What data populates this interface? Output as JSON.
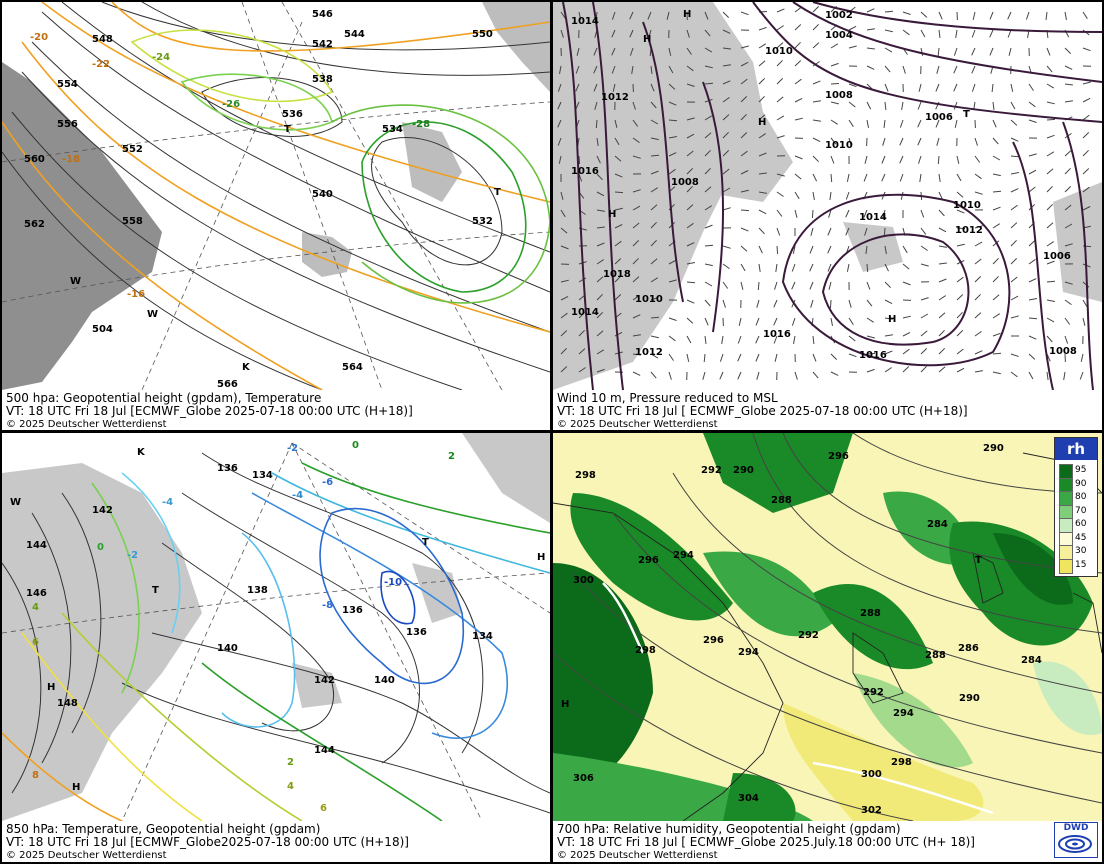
{
  "panels": {
    "tl": {
      "line1": "500 hpa: Geopotential height (gpdam), Temperature",
      "line2": "VT: 18 UTC Fri  18 Jul [ECMWF_Globe 2025-07-18 00:00 UTC  (H+18)]",
      "copyright": "© 2025 Deutscher Wetterdienst",
      "height_labels": [
        "546",
        "542",
        "544",
        "550",
        "548",
        "554",
        "556",
        "560",
        "562",
        "538",
        "536",
        "534",
        "532",
        "540",
        "552",
        "558",
        "564",
        "566",
        "504"
      ],
      "temp_labels": [
        "-20",
        "-22",
        "-24",
        "-26",
        "-28",
        "-18",
        "-16"
      ],
      "markers": [
        "T",
        "W",
        "K"
      ]
    },
    "tr": {
      "line1": "Wind 10 m, Pressure reduced to MSL",
      "line2": "VT: 18 UTC Fri  18 Jul [ ECMWF_Globe 2025-07-18 00:00 UTC  (H+18)]",
      "copyright": "© 2025 Deutscher Wetterdienst",
      "pressure_labels": [
        "1014",
        "1012",
        "1016",
        "1018",
        "1010",
        "1008",
        "1002",
        "1004",
        "1006"
      ],
      "markers": [
        "H",
        "T"
      ]
    },
    "bl": {
      "line1": "850 hPa:  Temperature, Geopotential height (gpdam)",
      "line2": "VT: 18 UTC Fri  18 Jul [ECMWF_Globe2025-07-18 00:00 UTC (H+18)]",
      "copyright": "© 2025 Deutscher Wetterdienst",
      "height_labels": [
        "136",
        "134",
        "138",
        "140",
        "142",
        "144",
        "146",
        "148"
      ],
      "temp_labels": [
        "2",
        "0",
        "-2",
        "-4",
        "-6",
        "-8",
        "-10",
        "4",
        "6",
        "8"
      ],
      "markers": [
        "W",
        "K",
        "T",
        "H"
      ]
    },
    "br": {
      "line1": "700 hPa:  Relative humidity, Geopotential height (gpdam)",
      "line2": "VT: 18 UTC Fri  18 Jul [ ECMWF_Globe  2025.July.18 00:00 UTC  (H+ 18)]",
      "copyright": "© 2025 Deutscher Wetterdienst",
      "height_labels": [
        "290",
        "292",
        "294",
        "296",
        "298",
        "300",
        "302",
        "304",
        "284",
        "286",
        "288",
        "282"
      ],
      "markers": [
        "H",
        "T"
      ],
      "legend": {
        "title": "rh",
        "values": [
          "95",
          "90",
          "80",
          "70",
          "60",
          "45",
          "30",
          "15"
        ],
        "colors": [
          "#0b6b1a",
          "#1a8a28",
          "#3aa845",
          "#7fcf7a",
          "#c8ebc0",
          "#fbfbd8",
          "#f6f09a",
          "#efe55e"
        ]
      },
      "logo_text": "DWD"
    }
  },
  "colors": {
    "land": "#bdbdbd",
    "isobar": "#3a1a3a",
    "height": "#333333",
    "t_cold": "#2aa02a",
    "t_warm": "#f0a020",
    "t_blue": "#3a8adc",
    "rh_green": "#1a8a28"
  }
}
